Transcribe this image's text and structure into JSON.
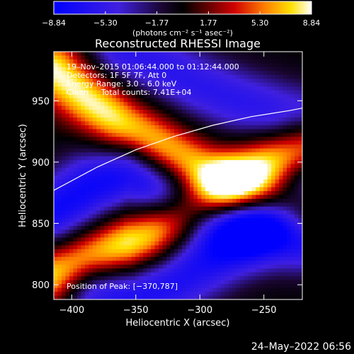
{
  "chart_data": {
    "type": "heatmap",
    "title": "Reconstructed RHESSI Image",
    "xlabel": "Heliocentric X (arcsec)",
    "ylabel": "Heliocentric Y (arcsec)",
    "xlim": [
      -414,
      -220
    ],
    "ylim": [
      788,
      990
    ],
    "x_ticks": [
      -400,
      -350,
      -300,
      -250
    ],
    "x_tick_labels": [
      "−400",
      "−350",
      "−300",
      "−250"
    ],
    "y_ticks": [
      800,
      850,
      900,
      950
    ],
    "y_tick_labels": [
      "800",
      "850",
      "900",
      "950"
    ],
    "colorbar": {
      "label": "(photons cm⁻² s⁻¹ asec⁻²)",
      "range": [
        -8.84,
        8.84
      ],
      "ticks": [
        -8.84,
        -5.3,
        -1.77,
        1.77,
        5.3,
        8.84
      ],
      "tick_labels": [
        "−8.84",
        "−5.30",
        "−1.77",
        "1.77",
        "5.30",
        "8.84"
      ],
      "colormap": "blue-black-red-yellow-white"
    },
    "annotations": [
      "19–Nov–2015 01:06:44.000 to 01:12:44.000",
      "Detectors: 1F 5F 7F, Att 0",
      "Energy Range: 3.0 – 6.0 keV",
      "Clean     Total counts: 7.41E+04"
    ],
    "position_label": "Position of Peak: [−370,787]",
    "bands": [
      {
        "kind": "positive",
        "peak": 8.8,
        "path": [
          [
            -414,
            975
          ],
          [
            -385,
            950
          ],
          [
            -360,
            930
          ],
          [
            -330,
            912
          ],
          [
            -300,
            892
          ],
          [
            -270,
            878
          ],
          [
            -240,
            868
          ],
          [
            -220,
            860
          ]
        ]
      },
      {
        "kind": "negative",
        "peak": -8.0,
        "path": [
          [
            -414,
            860
          ],
          [
            -385,
            880
          ],
          [
            -355,
            892
          ],
          [
            -325,
            876
          ],
          [
            -295,
            860
          ],
          [
            -265,
            852
          ],
          [
            -240,
            846
          ],
          [
            -220,
            840
          ]
        ]
      },
      {
        "kind": "positive",
        "peak": 8.84,
        "path": [
          [
            -414,
            808
          ],
          [
            -390,
            820
          ],
          [
            -370,
            828
          ],
          [
            -345,
            838
          ],
          [
            -320,
            852
          ],
          [
            -295,
            868
          ],
          [
            -270,
            885
          ],
          [
            -245,
            900
          ],
          [
            -220,
            912
          ]
        ]
      },
      {
        "kind": "negative",
        "peak": -7.0,
        "path": [
          [
            -380,
            795
          ],
          [
            -350,
            790
          ],
          [
            -320,
            802
          ],
          [
            -295,
            818
          ],
          [
            -270,
            835
          ],
          [
            -245,
            858
          ],
          [
            -220,
            875
          ]
        ]
      },
      {
        "kind": "negative",
        "peak": -6.0,
        "path": [
          [
            -360,
            992
          ],
          [
            -330,
            978
          ],
          [
            -300,
            962
          ],
          [
            -270,
            950
          ],
          [
            -240,
            940
          ],
          [
            -220,
            935
          ]
        ]
      }
    ],
    "limb_curve": [
      [
        -414,
        877
      ],
      [
        -380,
        896
      ],
      [
        -350,
        910
      ],
      [
        -320,
        921
      ],
      [
        -290,
        930
      ],
      [
        -260,
        937
      ],
      [
        -230,
        942
      ],
      [
        -220,
        944
      ]
    ]
  },
  "footer": {
    "datetime": "24–May–2022 06:56"
  }
}
